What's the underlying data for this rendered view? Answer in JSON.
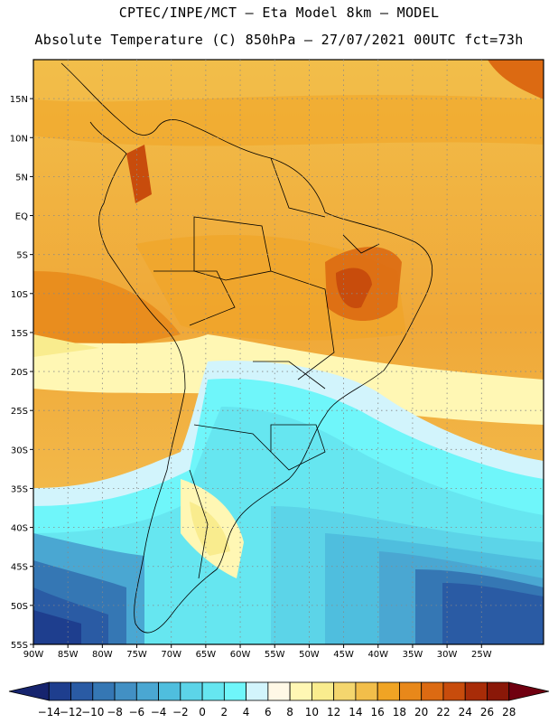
{
  "header": {
    "line1": "CPTEC/INPE/MCT –  Eta Model 8km – MODEL",
    "line2": "Absolute Temperature (C) 850hPa – 27/07/2021 00UTC fct=73h"
  },
  "map": {
    "lon_range": [
      -90,
      -16
    ],
    "lat_range": [
      -55,
      20
    ],
    "lat_labels": [
      "15N",
      "10N",
      "5N",
      "EQ",
      "5S",
      "10S",
      "15S",
      "20S",
      "25S",
      "30S",
      "35S",
      "40S",
      "45S",
      "50S",
      "55S"
    ],
    "lat_values": [
      15,
      10,
      5,
      0,
      -5,
      -10,
      -15,
      -20,
      -25,
      -30,
      -35,
      -40,
      -45,
      -50,
      -55
    ],
    "lon_labels": [
      "90W",
      "85W",
      "80W",
      "75W",
      "70W",
      "65W",
      "60W",
      "55W",
      "50W",
      "45W",
      "40W",
      "35W",
      "30W",
      "25W"
    ],
    "lon_values": [
      -90,
      -85,
      -80,
      -75,
      -70,
      -65,
      -60,
      -55,
      -50,
      -45,
      -40,
      -35,
      -30,
      -25
    ]
  },
  "colorbar": {
    "labels": [
      "-14",
      "-12",
      "-10",
      "-8",
      "-6",
      "-4",
      "-2",
      "0",
      "2",
      "4",
      "6",
      "8",
      "10",
      "12",
      "14",
      "16",
      "18",
      "20",
      "22",
      "24",
      "26",
      "28"
    ],
    "colors": [
      "#16246e",
      "#1e3e8e",
      "#2a5ba4",
      "#3577b4",
      "#4290c4",
      "#4aa7d2",
      "#4fbede",
      "#5cd4e8",
      "#66e6f0",
      "#6ff6fa",
      "#d2f4fc",
      "#fff8e6",
      "#fff7b4",
      "#f9ec8e",
      "#f4d66e",
      "#f2be4a",
      "#f0a424",
      "#e8881a",
      "#dc6a12",
      "#c84c0c",
      "#a82c08",
      "#8a1808",
      "#700010"
    ]
  }
}
